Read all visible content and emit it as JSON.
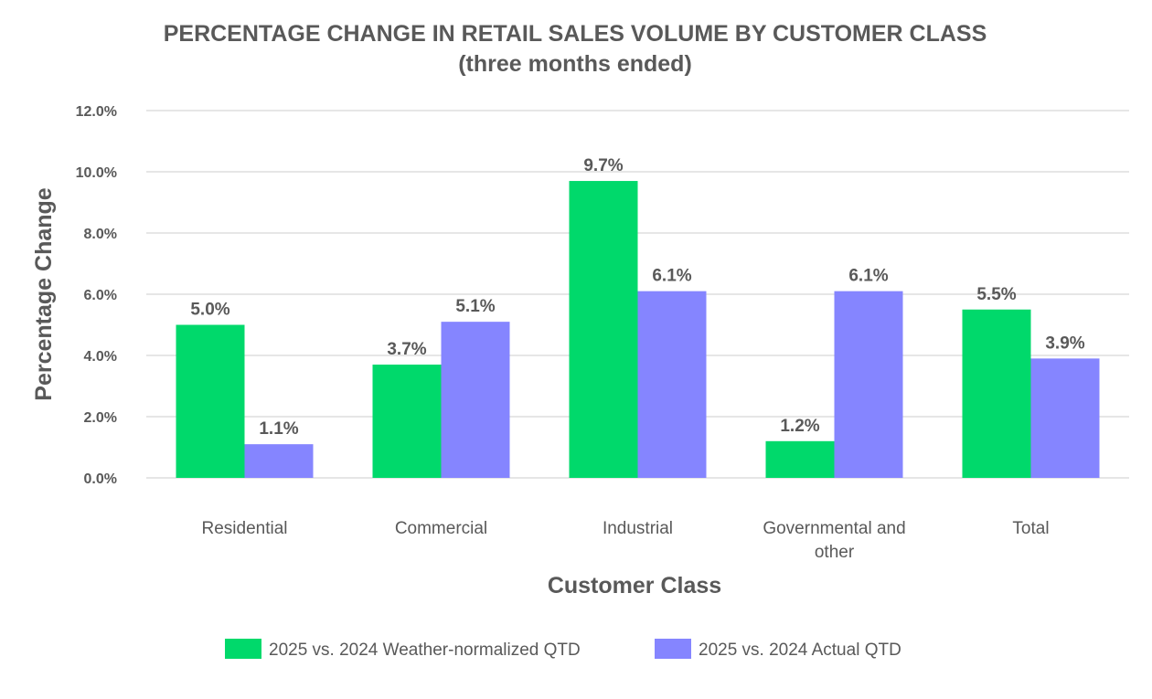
{
  "chart_data": {
    "type": "bar",
    "title": "PERCENTAGE CHANGE IN  RETAIL SALES VOLUME BY CUSTOMER CLASS",
    "subtitle": "(three months ended)",
    "xlabel": "Customer Class",
    "ylabel": "Percentage Change",
    "categories": [
      [
        "Residential"
      ],
      [
        "Commercial"
      ],
      [
        "Industrial"
      ],
      [
        "Governmental and",
        "other"
      ],
      [
        "Total"
      ]
    ],
    "series": [
      {
        "name": "2025 vs. 2024 Weather-normalized QTD",
        "color": "#00d96b",
        "values": [
          5.0,
          3.7,
          9.7,
          1.2,
          5.5
        ],
        "labels": [
          "5.0%",
          "3.7%",
          "9.7%",
          "1.2%",
          "5.5%"
        ]
      },
      {
        "name": "2025 vs. 2024 Actual QTD",
        "color": "#8585ff",
        "values": [
          1.1,
          5.1,
          6.1,
          6.1,
          3.9
        ],
        "labels": [
          "1.1%",
          "5.1%",
          "6.1%",
          "6.1%",
          "3.9%"
        ]
      }
    ],
    "ylim": [
      0,
      12
    ],
    "yticks": [
      0,
      2,
      4,
      6,
      8,
      10,
      12
    ],
    "ytick_labels": [
      "0.0%",
      "2.0%",
      "4.0%",
      "6.0%",
      "8.0%",
      "10.0%",
      "12.0%"
    ],
    "grid": true,
    "legend_position": "bottom-center"
  }
}
